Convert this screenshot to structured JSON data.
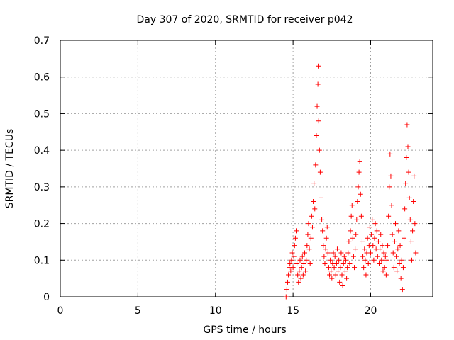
{
  "chart_data": {
    "type": "scatter",
    "title": "Day 307 of 2020, SRMTID for receiver p042",
    "xlabel": "GPS time / hours",
    "ylabel": "SRMTID / TECUs",
    "xlim": [
      0,
      24
    ],
    "ylim": [
      0,
      0.7
    ],
    "xticks": [
      0,
      5,
      10,
      15,
      20
    ],
    "yticks": [
      0,
      0.1,
      0.2,
      0.3,
      0.4,
      0.5,
      0.6,
      0.7
    ],
    "xtick_labels": [
      "0",
      "5",
      "10",
      "15",
      "20"
    ],
    "ytick_labels": [
      "0",
      "0.1",
      "0.2",
      "0.3",
      "0.4",
      "0.5",
      "0.6",
      "0.7"
    ],
    "grid": true,
    "marker": "+",
    "color": "#ff0000",
    "series": [
      {
        "name": "SRMTID",
        "points": [
          [
            14.55,
            0.0
          ],
          [
            14.6,
            0.02
          ],
          [
            14.65,
            0.04
          ],
          [
            14.7,
            0.06
          ],
          [
            14.75,
            0.08
          ],
          [
            14.8,
            0.09
          ],
          [
            14.85,
            0.07
          ],
          [
            14.9,
            0.1
          ],
          [
            14.95,
            0.12
          ],
          [
            15.0,
            0.08
          ],
          [
            15.05,
            0.11
          ],
          [
            15.1,
            0.14
          ],
          [
            15.15,
            0.16
          ],
          [
            15.2,
            0.18
          ],
          [
            15.25,
            0.09
          ],
          [
            15.3,
            0.06
          ],
          [
            15.35,
            0.04
          ],
          [
            15.4,
            0.07
          ],
          [
            15.45,
            0.1
          ],
          [
            15.5,
            0.05
          ],
          [
            15.55,
            0.08
          ],
          [
            15.6,
            0.11
          ],
          [
            15.65,
            0.06
          ],
          [
            15.7,
            0.09
          ],
          [
            15.75,
            0.12
          ],
          [
            15.8,
            0.07
          ],
          [
            15.85,
            0.1
          ],
          [
            15.9,
            0.14
          ],
          [
            15.95,
            0.17
          ],
          [
            16.0,
            0.2
          ],
          [
            16.05,
            0.13
          ],
          [
            16.1,
            0.09
          ],
          [
            16.15,
            0.16
          ],
          [
            16.2,
            0.22
          ],
          [
            16.25,
            0.19
          ],
          [
            16.3,
            0.26
          ],
          [
            16.35,
            0.31
          ],
          [
            16.4,
            0.24
          ],
          [
            16.45,
            0.36
          ],
          [
            16.5,
            0.44
          ],
          [
            16.55,
            0.52
          ],
          [
            16.6,
            0.58
          ],
          [
            16.62,
            0.63
          ],
          [
            16.65,
            0.48
          ],
          [
            16.7,
            0.4
          ],
          [
            16.75,
            0.34
          ],
          [
            16.8,
            0.27
          ],
          [
            16.85,
            0.21
          ],
          [
            16.9,
            0.18
          ],
          [
            16.95,
            0.14
          ],
          [
            17.0,
            0.11
          ],
          [
            17.05,
            0.09
          ],
          [
            17.1,
            0.13
          ],
          [
            17.15,
            0.16
          ],
          [
            17.2,
            0.19
          ],
          [
            17.25,
            0.12
          ],
          [
            17.3,
            0.08
          ],
          [
            17.35,
            0.06
          ],
          [
            17.4,
            0.1
          ],
          [
            17.45,
            0.07
          ],
          [
            17.5,
            0.05
          ],
          [
            17.55,
            0.09
          ],
          [
            17.6,
            0.12
          ],
          [
            17.65,
            0.08
          ],
          [
            17.7,
            0.11
          ],
          [
            17.75,
            0.06
          ],
          [
            17.8,
            0.09
          ],
          [
            17.85,
            0.13
          ],
          [
            17.9,
            0.07
          ],
          [
            17.95,
            0.1
          ],
          [
            18.0,
            0.04
          ],
          [
            18.05,
            0.08
          ],
          [
            18.1,
            0.12
          ],
          [
            18.15,
            0.06
          ],
          [
            18.2,
            0.03
          ],
          [
            18.25,
            0.09
          ],
          [
            18.3,
            0.11
          ],
          [
            18.35,
            0.07
          ],
          [
            18.4,
            0.1
          ],
          [
            18.45,
            0.05
          ],
          [
            18.5,
            0.08
          ],
          [
            18.55,
            0.12
          ],
          [
            18.6,
            0.15
          ],
          [
            18.65,
            0.09
          ],
          [
            18.7,
            0.18
          ],
          [
            18.75,
            0.22
          ],
          [
            18.8,
            0.25
          ],
          [
            18.85,
            0.16
          ],
          [
            18.9,
            0.11
          ],
          [
            18.95,
            0.08
          ],
          [
            19.0,
            0.13
          ],
          [
            19.05,
            0.17
          ],
          [
            19.1,
            0.21
          ],
          [
            19.15,
            0.26
          ],
          [
            19.2,
            0.3
          ],
          [
            19.25,
            0.34
          ],
          [
            19.3,
            0.37
          ],
          [
            19.35,
            0.28
          ],
          [
            19.4,
            0.22
          ],
          [
            19.45,
            0.15
          ],
          [
            19.5,
            0.11
          ],
          [
            19.55,
            0.08
          ],
          [
            19.6,
            0.13
          ],
          [
            19.65,
            0.1
          ],
          [
            19.7,
            0.06
          ],
          [
            19.75,
            0.12
          ],
          [
            19.8,
            0.16
          ],
          [
            19.85,
            0.09
          ],
          [
            19.9,
            0.14
          ],
          [
            19.95,
            0.19
          ],
          [
            20.0,
            0.12
          ],
          [
            20.05,
            0.17
          ],
          [
            20.1,
            0.21
          ],
          [
            20.15,
            0.14
          ],
          [
            20.2,
            0.1
          ],
          [
            20.25,
            0.16
          ],
          [
            20.3,
            0.2
          ],
          [
            20.35,
            0.13
          ],
          [
            20.4,
            0.18
          ],
          [
            20.45,
            0.11
          ],
          [
            20.5,
            0.15
          ],
          [
            20.55,
            0.09
          ],
          [
            20.6,
            0.13
          ],
          [
            20.65,
            0.17
          ],
          [
            20.7,
            0.1
          ],
          [
            20.75,
            0.14
          ],
          [
            20.8,
            0.07
          ],
          [
            20.85,
            0.12
          ],
          [
            20.9,
            0.08
          ],
          [
            20.95,
            0.11
          ],
          [
            21.0,
            0.06
          ],
          [
            21.05,
            0.1
          ],
          [
            21.1,
            0.14
          ],
          [
            21.15,
            0.22
          ],
          [
            21.2,
            0.3
          ],
          [
            21.25,
            0.39
          ],
          [
            21.3,
            0.33
          ],
          [
            21.35,
            0.25
          ],
          [
            21.4,
            0.17
          ],
          [
            21.45,
            0.12
          ],
          [
            21.5,
            0.08
          ],
          [
            21.55,
            0.15
          ],
          [
            21.6,
            0.2
          ],
          [
            21.65,
            0.11
          ],
          [
            21.7,
            0.07
          ],
          [
            21.75,
            0.13
          ],
          [
            21.8,
            0.18
          ],
          [
            21.85,
            0.09
          ],
          [
            21.9,
            0.14
          ],
          [
            21.95,
            0.05
          ],
          [
            22.0,
            0.1
          ],
          [
            22.05,
            0.02
          ],
          [
            22.1,
            0.08
          ],
          [
            22.15,
            0.16
          ],
          [
            22.2,
            0.24
          ],
          [
            22.25,
            0.31
          ],
          [
            22.3,
            0.38
          ],
          [
            22.35,
            0.47
          ],
          [
            22.4,
            0.41
          ],
          [
            22.45,
            0.34
          ],
          [
            22.5,
            0.27
          ],
          [
            22.55,
            0.21
          ],
          [
            22.6,
            0.15
          ],
          [
            22.65,
            0.1
          ],
          [
            22.7,
            0.18
          ],
          [
            22.75,
            0.26
          ],
          [
            22.8,
            0.33
          ],
          [
            22.85,
            0.2
          ],
          [
            22.9,
            0.12
          ]
        ]
      }
    ]
  }
}
